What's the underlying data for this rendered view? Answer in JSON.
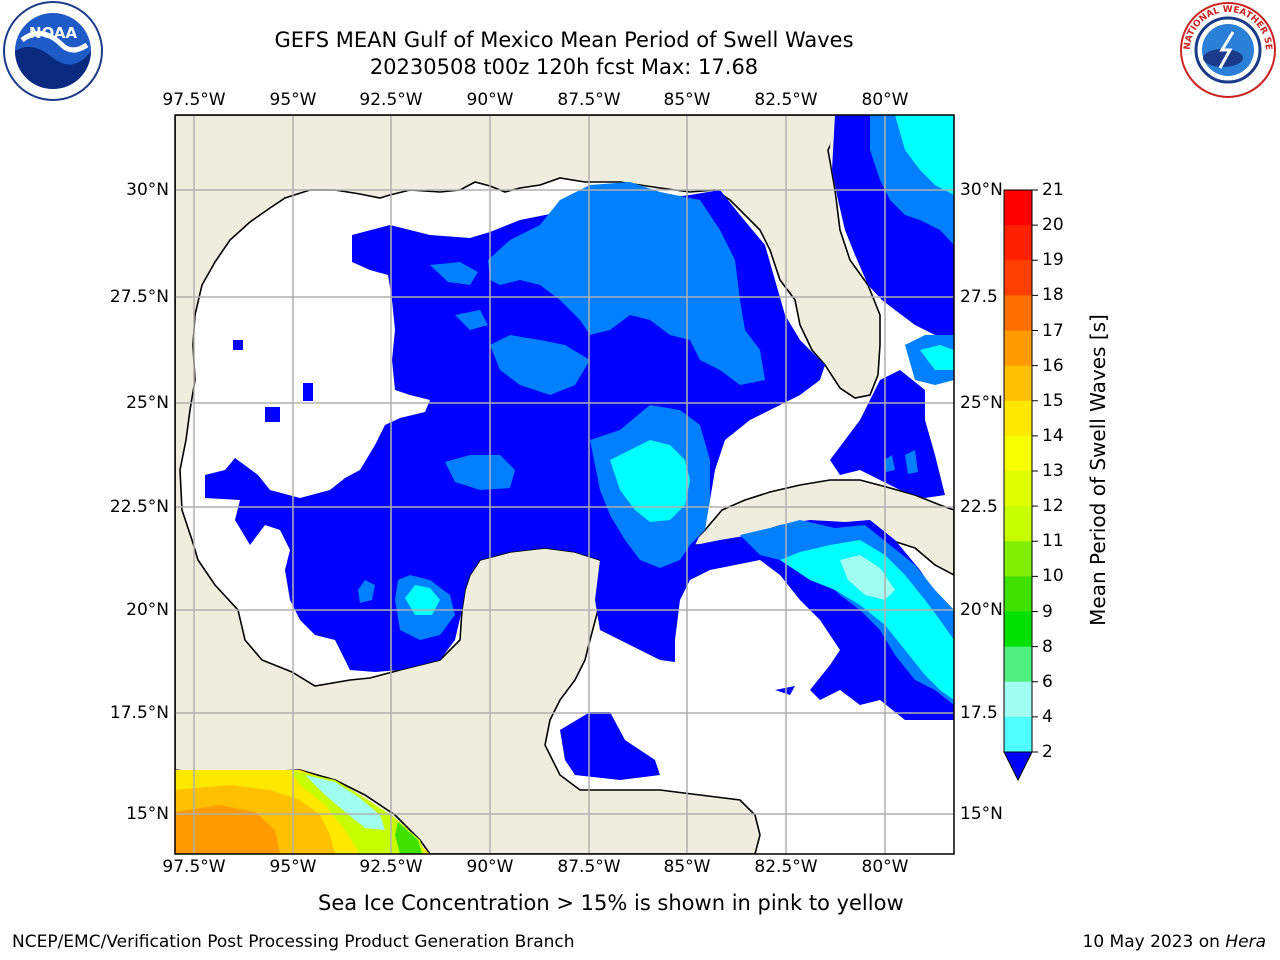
{
  "title_line1": "GEFS MEAN Gulf of Mexico Mean Period of Swell Waves",
  "title_line2": "20230508 t00z 120h fcst   Max: 17.68",
  "lon_labels": [
    "97.5°W",
    "95°W",
    "92.5°W",
    "90°W",
    "87.5°W",
    "85°W",
    "82.5°W",
    "80°W"
  ],
  "lat_labels_left": [
    "30°N",
    "27.5°N",
    "25°N",
    "22.5°N",
    "20°N",
    "17.5°N",
    "15°N"
  ],
  "lat_labels_right": [
    "30°N",
    "27.5",
    "25°N",
    "22.5",
    "20°N",
    "17.5",
    "15°N"
  ],
  "colorbar": {
    "title": "Mean Period of Swell Waves [s]",
    "ticks": [
      "21",
      "20",
      "19",
      "18",
      "17",
      "16",
      "15",
      "14",
      "13",
      "12",
      "11",
      "10",
      "9",
      "8",
      "6",
      "4",
      "2"
    ],
    "colors": [
      "#ff0000",
      "#ff2000",
      "#ff4000",
      "#ff7000",
      "#ff9a00",
      "#ffc000",
      "#ffe800",
      "#f8ff00",
      "#e0ff00",
      "#c8ff00",
      "#80f000",
      "#40e000",
      "#00e000",
      "#50f080",
      "#a0fff0",
      "#50ffff",
      "#00ffff",
      "#0080ff",
      "#0000ff"
    ]
  },
  "subtitle": "Sea Ice Concentration > 15% is shown in pink to yellow",
  "footer_left": "NCEP/EMC/Verification Post Processing Product Generation Branch",
  "footer_right_prefix": "10 May 2023 on ",
  "footer_right_host": "Hera",
  "logos": {
    "noaa": "NOAA",
    "nws": "NATIONAL WEATHER SERVICE"
  },
  "colors": {
    "land": "#efeddd",
    "grid": "#b0b0b0",
    "swell_2_4": "#0000ff",
    "swell_4_6": "#0080ff",
    "swell_6_8": "#00ffff"
  }
}
